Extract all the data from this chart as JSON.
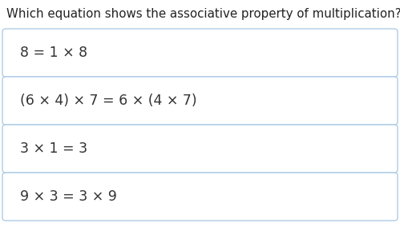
{
  "title": "Which equation shows the associative property of multiplication?",
  "options": [
    "8 = 1 × 8",
    "(6 × 4) × 7 = 6 × (4 × 7)",
    "3 × 1 = 3",
    "9 × 3 = 3 × 9"
  ],
  "bg_color": "#ffffff",
  "box_border_color": "#aecce8",
  "box_fill_color": "#ffffff",
  "title_color": "#222222",
  "text_color": "#333333",
  "title_fontsize": 10.8,
  "option_fontsize": 12.5,
  "fig_width": 4.99,
  "fig_height": 2.94,
  "dpi": 100
}
